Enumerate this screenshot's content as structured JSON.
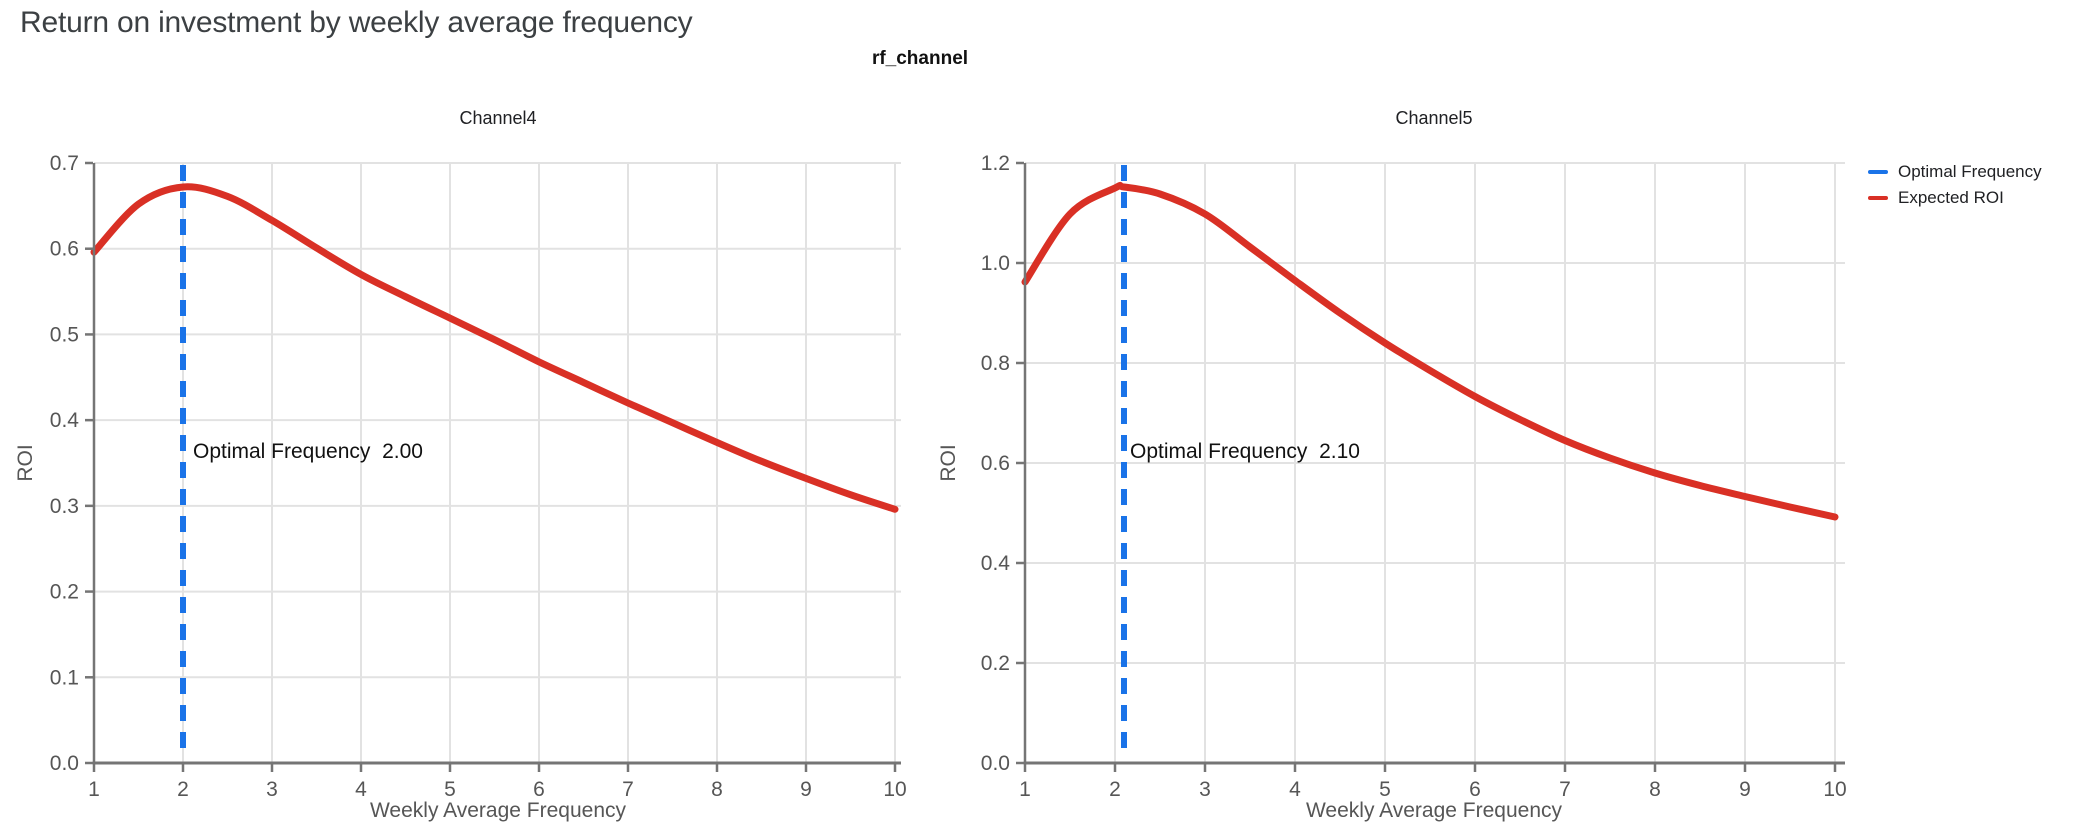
{
  "page": {
    "title": "Return on investment by weekly average frequency"
  },
  "figure": {
    "subtitle": "rf_channel",
    "legend": [
      {
        "label": "Optimal Frequency",
        "color": "#1a73e8"
      },
      {
        "label": "Expected ROI",
        "color": "#d93025"
      }
    ]
  },
  "colors": {
    "expected_roi": "#d93025",
    "optimal_frequency": "#1a73e8",
    "grid": "#e2e2e2",
    "axis": "#757575",
    "tick_label": "#565656",
    "title_text": "#3c4043",
    "text": "#202124"
  },
  "chart_data": [
    {
      "type": "line",
      "title": "Channel4",
      "xlabel": "Weekly Average Frequency",
      "ylabel": "ROI",
      "xlim": [
        1,
        10
      ],
      "ylim": [
        0,
        0.7
      ],
      "xticks": [
        1,
        2,
        3,
        4,
        5,
        6,
        7,
        8,
        9,
        10
      ],
      "yticks": [
        0.0,
        0.1,
        0.2,
        0.3,
        0.4,
        0.5,
        0.6,
        0.7
      ],
      "grid": true,
      "legend_position": "top-right-outside",
      "optimal_frequency": 2.0,
      "annotation": "Optimal Frequency  2.00",
      "series": [
        {
          "name": "Expected ROI",
          "x": [
            1,
            1.5,
            2,
            2.5,
            3,
            3.5,
            4,
            4.5,
            5,
            5.5,
            6,
            6.5,
            7,
            7.5,
            8,
            8.5,
            9,
            9.5,
            10
          ],
          "y": [
            0.596,
            0.652,
            0.672,
            0.661,
            0.633,
            0.601,
            0.57,
            0.544,
            0.519,
            0.494,
            0.468,
            0.444,
            0.42,
            0.397,
            0.374,
            0.352,
            0.332,
            0.313,
            0.296
          ]
        },
        {
          "name": "Optimal Frequency",
          "type": "vline-dashed",
          "x": 2.0
        }
      ]
    },
    {
      "type": "line",
      "title": "Channel5",
      "xlabel": "Weekly Average Frequency",
      "ylabel": "ROI",
      "xlim": [
        1,
        10
      ],
      "ylim": [
        0,
        1.2
      ],
      "xticks": [
        1,
        2,
        3,
        4,
        5,
        6,
        7,
        8,
        9,
        10
      ],
      "yticks": [
        0.0,
        0.2,
        0.4,
        0.6,
        0.8,
        1.0,
        1.2
      ],
      "grid": true,
      "legend_position": "top-right-outside",
      "optimal_frequency": 2.1,
      "annotation": "Optimal Frequency  2.10",
      "series": [
        {
          "name": "Expected ROI",
          "x": [
            1,
            1.5,
            2,
            2.1,
            2.5,
            3,
            3.5,
            4,
            4.5,
            5,
            5.5,
            6,
            6.5,
            7,
            7.5,
            8,
            8.5,
            9,
            9.5,
            10
          ],
          "y": [
            0.962,
            1.098,
            1.15,
            1.152,
            1.138,
            1.098,
            1.032,
            0.965,
            0.9,
            0.84,
            0.785,
            0.733,
            0.687,
            0.645,
            0.61,
            0.58,
            0.555,
            0.533,
            0.512,
            0.492
          ]
        },
        {
          "name": "Optimal Frequency",
          "type": "vline-dashed",
          "x": 2.1
        }
      ]
    }
  ]
}
